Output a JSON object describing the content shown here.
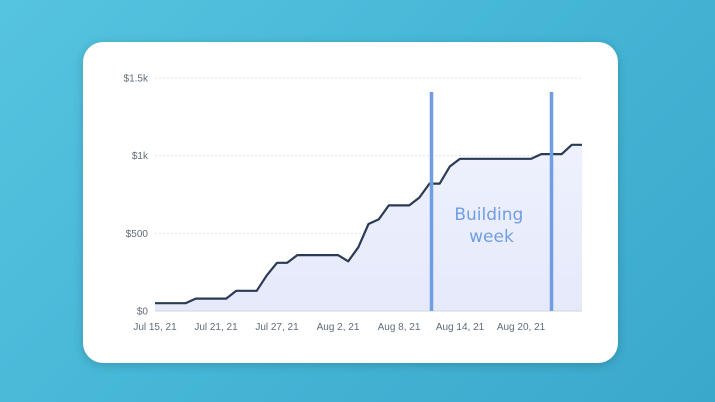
{
  "chart_data": {
    "type": "area",
    "title": "",
    "xlabel": "",
    "ylabel": "",
    "ylim": [
      0,
      1500
    ],
    "grid": true,
    "x_tick_labels": [
      "Jul 15, 21",
      "Jul 21, 21",
      "Jul 27, 21",
      "Aug 2, 21",
      "Aug 8, 21",
      "Aug 14, 21",
      "Aug 20, 21"
    ],
    "y_tick_labels": [
      "$0",
      "$500",
      "$1k",
      "$1.5k"
    ],
    "y_tick_values": [
      0,
      500,
      1000,
      1500
    ],
    "x": [
      "2021-07-15",
      "2021-07-16",
      "2021-07-17",
      "2021-07-18",
      "2021-07-19",
      "2021-07-20",
      "2021-07-21",
      "2021-07-22",
      "2021-07-23",
      "2021-07-24",
      "2021-07-25",
      "2021-07-26",
      "2021-07-27",
      "2021-07-28",
      "2021-07-29",
      "2021-07-30",
      "2021-07-31",
      "2021-08-01",
      "2021-08-02",
      "2021-08-03",
      "2021-08-04",
      "2021-08-05",
      "2021-08-06",
      "2021-08-07",
      "2021-08-08",
      "2021-08-09",
      "2021-08-10",
      "2021-08-11",
      "2021-08-12",
      "2021-08-13",
      "2021-08-14",
      "2021-08-15",
      "2021-08-16",
      "2021-08-17",
      "2021-08-18",
      "2021-08-19",
      "2021-08-20",
      "2021-08-21",
      "2021-08-22",
      "2021-08-23",
      "2021-08-24",
      "2021-08-25",
      "2021-08-26"
    ],
    "series": [
      {
        "name": "",
        "color": "#2b3a55",
        "values": [
          50,
          50,
          50,
          50,
          80,
          80,
          80,
          80,
          130,
          130,
          130,
          230,
          310,
          310,
          360,
          360,
          360,
          360,
          360,
          320,
          410,
          560,
          590,
          680,
          680,
          680,
          730,
          820,
          820,
          930,
          980,
          980,
          980,
          980,
          980,
          980,
          980,
          980,
          1010,
          1010,
          1010,
          1070,
          1070
        ]
      }
    ],
    "annotations": [
      {
        "text_lines": [
          "Building",
          "week"
        ],
        "color": "#6f9ee3",
        "vlines_x": [
          "2021-08-11",
          "2021-08-23"
        ]
      }
    ],
    "colors": {
      "line": "#2b3a55",
      "fill": "#e9edfb",
      "grid": "#dde2ea",
      "annotation": "#6f9ee3"
    }
  }
}
